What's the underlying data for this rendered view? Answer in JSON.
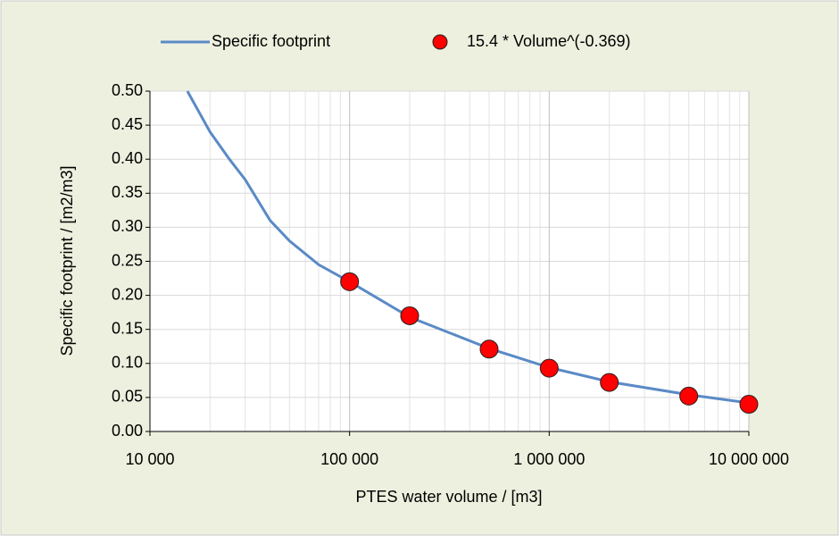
{
  "chart_data": {
    "type": "line",
    "x_label": "PTES water volume / [m3]",
    "y_label": "Specific footprint / [m2/m3]",
    "x_log": true,
    "grid": true,
    "minor_grid": true,
    "legend": "top",
    "xlim": [
      10000,
      10000000
    ],
    "ylim": [
      0,
      0.5
    ],
    "xticks": [
      {
        "value": 10000,
        "label": "10 000"
      },
      {
        "value": 100000,
        "label": "100 000"
      },
      {
        "value": 1000000,
        "label": "1 000 000"
      },
      {
        "value": 10000000,
        "label": "10 000 000"
      }
    ],
    "yticks": [
      {
        "value": 0,
        "label": "0.00"
      },
      0.05,
      {
        "value": 0.1,
        "label": "0.10"
      },
      0.15,
      {
        "value": 0.2,
        "label": "0.20"
      },
      0.25,
      {
        "value": 0.3,
        "label": "0.30"
      },
      0.35,
      {
        "value": 0.4,
        "label": "0.40"
      },
      0.45,
      {
        "value": 0.5,
        "label": "0.50"
      }
    ],
    "series": [
      {
        "name": "Specific footprint",
        "type": "line",
        "color": "#5a8ac6",
        "x": [
          15400,
          20000,
          25000,
          30000,
          40000,
          50000,
          70000,
          100000,
          200000,
          500000,
          1000000,
          2000000,
          5000000,
          10000000
        ],
        "values": [
          0.5,
          0.44,
          0.4,
          0.37,
          0.31,
          0.28,
          0.245,
          0.22,
          0.168,
          0.122,
          0.094,
          0.073,
          0.054,
          0.042
        ]
      },
      {
        "name": "15.4 * Volume^(-0.369)",
        "type": "scatter",
        "color": "#ff0000",
        "x": [
          100000,
          200000,
          500000,
          1000000,
          2000000,
          5000000,
          10000000
        ],
        "values": [
          0.22,
          0.17,
          0.121,
          0.093,
          0.072,
          0.052,
          0.04
        ]
      }
    ]
  }
}
